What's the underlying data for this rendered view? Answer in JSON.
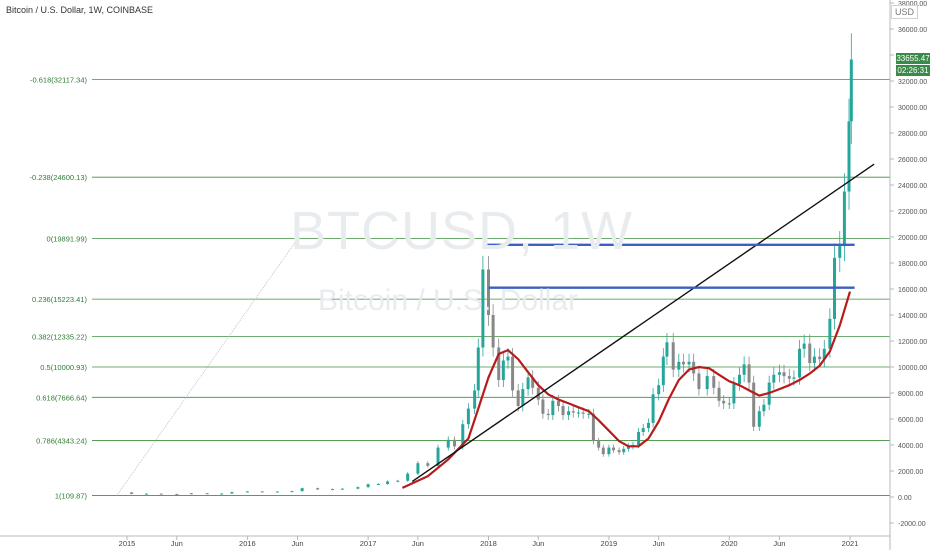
{
  "chart_title": "Bitcoin / U.S. Dollar, 1W, COINBASE",
  "watermark": {
    "symbol": "BTCUSD, 1W",
    "name": "Bitcoin / U.S. Dollar"
  },
  "currency_label": "USD",
  "last_price": "33655.47",
  "countdown": "02:26:31",
  "colors": {
    "fib_line": "#3f8f3f",
    "fib_label": "#2e7d32",
    "up_candle": "#26a69a",
    "down_candle": "#888888",
    "moving_average": "#b71c1c",
    "resistance": "#3b5fc2",
    "trendline": "#111111",
    "price_badge": "#3a8a4a"
  },
  "chart_data": {
    "type": "candlestick",
    "y_axis": {
      "side": "right",
      "min": -2000,
      "max": 38000,
      "step": 2000,
      "ticks": [
        "-2000.00",
        "0.00",
        "2000.00",
        "4000.00",
        "6000.00",
        "8000.00",
        "10000.00",
        "12000.00",
        "14000.00",
        "16000.00",
        "18000.00",
        "20000.00",
        "22000.00",
        "24000.00",
        "26000.00",
        "28000.00",
        "30000.00",
        "32000.00",
        "34000.00",
        "36000.00",
        "38000.00"
      ]
    },
    "x_axis": {
      "ticks": [
        {
          "label": "2015",
          "date": "2015-01-01"
        },
        {
          "label": "Jun",
          "date": "2015-06-01"
        },
        {
          "label": "2016",
          "date": "2016-01-01"
        },
        {
          "label": "Jun",
          "date": "2016-06-01"
        },
        {
          "label": "2017",
          "date": "2017-01-01"
        },
        {
          "label": "Jun",
          "date": "2017-06-01"
        },
        {
          "label": "2018",
          "date": "2018-01-01"
        },
        {
          "label": "Jun",
          "date": "2018-06-01"
        },
        {
          "label": "2019",
          "date": "2019-01-01"
        },
        {
          "label": "Jun",
          "date": "2019-06-01"
        },
        {
          "label": "2020",
          "date": "2020-01-01"
        },
        {
          "label": "Jun",
          "date": "2020-06-01"
        },
        {
          "label": "2021",
          "date": "2021-01-01"
        }
      ]
    },
    "fib_levels": [
      {
        "label": "1(109.87)",
        "value": 109.87
      },
      {
        "label": "0.786(4343.24)",
        "value": 4343.24
      },
      {
        "label": "0.618(7666.64)",
        "value": 7666.64
      },
      {
        "label": "0.5(10000.93)",
        "value": 10000.93
      },
      {
        "label": "0.382(12335.22)",
        "value": 12335.22
      },
      {
        "label": "0.236(15223.41)",
        "value": 15223.41
      },
      {
        "label": "0(19891.99)",
        "value": 19891.99
      },
      {
        "label": "-0.238(24600.13)",
        "value": 24600.13
      },
      {
        "label": "-0.618(32117.34)",
        "value": 32117.34
      }
    ],
    "resistance_lines": [
      {
        "value": 19400,
        "from": "2017-12-15",
        "to": "2021-01-15"
      },
      {
        "value": 16100,
        "from": "2018-01-01",
        "to": "2021-01-15"
      }
    ],
    "trendline": {
      "from": {
        "date": "2017-05-15",
        "value": 1200
      },
      "to": {
        "date": "2021-03-15",
        "value": 25600
      }
    },
    "fib_anchor_line": {
      "from": {
        "date": "2014-12-01",
        "value": 109.87
      },
      "to": {
        "date": "2017-12-15",
        "value": 19891.99
      }
    },
    "series": [
      {
        "name": "Price",
        "points": [
          [
            "2014-12-01",
            350
          ],
          [
            "2015-01-15",
            230
          ],
          [
            "2015-03-01",
            260
          ],
          [
            "2015-04-15",
            235
          ],
          [
            "2015-06-01",
            230
          ],
          [
            "2015-07-15",
            290
          ],
          [
            "2015-09-01",
            235
          ],
          [
            "2015-10-15",
            270
          ],
          [
            "2015-11-15",
            380
          ],
          [
            "2016-01-01",
            430
          ],
          [
            "2016-02-15",
            410
          ],
          [
            "2016-04-01",
            420
          ],
          [
            "2016-05-15",
            450
          ],
          [
            "2016-06-15",
            680
          ],
          [
            "2016-08-01",
            580
          ],
          [
            "2016-09-15",
            610
          ],
          [
            "2016-10-15",
            640
          ],
          [
            "2016-12-01",
            760
          ],
          [
            "2017-01-01",
            980
          ],
          [
            "2017-02-01",
            1000
          ],
          [
            "2017-03-01",
            1200
          ],
          [
            "2017-04-01",
            1250
          ],
          [
            "2017-05-01",
            1800
          ],
          [
            "2017-06-01",
            2600
          ],
          [
            "2017-07-01",
            2400
          ],
          [
            "2017-08-01",
            3800
          ],
          [
            "2017-09-01",
            4400
          ],
          [
            "2017-09-20",
            3900
          ],
          [
            "2017-10-15",
            5600
          ],
          [
            "2017-11-01",
            6800
          ],
          [
            "2017-11-20",
            8200
          ],
          [
            "2017-12-01",
            11500
          ],
          [
            "2017-12-15",
            17500
          ],
          [
            "2018-01-01",
            14000
          ],
          [
            "2018-01-15",
            11500
          ],
          [
            "2018-02-01",
            9000
          ],
          [
            "2018-02-15",
            10500
          ],
          [
            "2018-03-01",
            10800
          ],
          [
            "2018-03-15",
            8200
          ],
          [
            "2018-04-01",
            7000
          ],
          [
            "2018-04-15",
            8300
          ],
          [
            "2018-05-01",
            9200
          ],
          [
            "2018-05-15",
            8400
          ],
          [
            "2018-06-01",
            7500
          ],
          [
            "2018-06-15",
            6400
          ],
          [
            "2018-07-01",
            6300
          ],
          [
            "2018-07-15",
            7400
          ],
          [
            "2018-08-01",
            7000
          ],
          [
            "2018-08-15",
            6300
          ],
          [
            "2018-09-01",
            6600
          ],
          [
            "2018-09-15",
            6500
          ],
          [
            "2018-10-01",
            6500
          ],
          [
            "2018-10-15",
            6400
          ],
          [
            "2018-11-01",
            6400
          ],
          [
            "2018-11-15",
            4300
          ],
          [
            "2018-12-01",
            3800
          ],
          [
            "2018-12-15",
            3300
          ],
          [
            "2019-01-01",
            3800
          ],
          [
            "2019-01-15",
            3600
          ],
          [
            "2019-02-01",
            3450
          ],
          [
            "2019-02-15",
            3700
          ],
          [
            "2019-03-01",
            3900
          ],
          [
            "2019-03-15",
            4000
          ],
          [
            "2019-04-01",
            5000
          ],
          [
            "2019-04-15",
            5300
          ],
          [
            "2019-05-01",
            5700
          ],
          [
            "2019-05-15",
            7900
          ],
          [
            "2019-06-01",
            8600
          ],
          [
            "2019-06-15",
            10800
          ],
          [
            "2019-06-26",
            11900
          ],
          [
            "2019-07-15",
            9800
          ],
          [
            "2019-08-01",
            10400
          ],
          [
            "2019-08-15",
            10200
          ],
          [
            "2019-09-01",
            10400
          ],
          [
            "2019-09-15",
            9500
          ],
          [
            "2019-10-01",
            8300
          ],
          [
            "2019-10-26",
            9300
          ],
          [
            "2019-11-15",
            8400
          ],
          [
            "2019-12-01",
            7400
          ],
          [
            "2019-12-15",
            7200
          ],
          [
            "2020-01-01",
            7200
          ],
          [
            "2020-01-15",
            8700
          ],
          [
            "2020-02-01",
            9400
          ],
          [
            "2020-02-15",
            10200
          ],
          [
            "2020-03-01",
            8800
          ],
          [
            "2020-03-15",
            5400
          ],
          [
            "2020-04-01",
            6600
          ],
          [
            "2020-04-15",
            7100
          ],
          [
            "2020-05-01",
            8800
          ],
          [
            "2020-05-15",
            9400
          ],
          [
            "2020-06-01",
            9600
          ],
          [
            "2020-06-15",
            9300
          ],
          [
            "2020-07-01",
            9100
          ],
          [
            "2020-07-15",
            9200
          ],
          [
            "2020-08-01",
            11400
          ],
          [
            "2020-08-15",
            11800
          ],
          [
            "2020-09-01",
            10300
          ],
          [
            "2020-09-15",
            10800
          ],
          [
            "2020-10-01",
            10600
          ],
          [
            "2020-10-15",
            11400
          ],
          [
            "2020-11-01",
            13700
          ],
          [
            "2020-11-15",
            18400
          ],
          [
            "2020-12-01",
            19300
          ],
          [
            "2020-12-15",
            23500
          ],
          [
            "2020-12-29",
            28900
          ],
          [
            "2021-01-05",
            33655
          ]
        ]
      },
      {
        "name": "Moving Average",
        "points": [
          [
            "2017-04-15",
            700
          ],
          [
            "2017-07-01",
            1600
          ],
          [
            "2017-09-01",
            2900
          ],
          [
            "2017-11-01",
            4500
          ],
          [
            "2017-12-01",
            6800
          ],
          [
            "2018-01-01",
            9200
          ],
          [
            "2018-02-01",
            11000
          ],
          [
            "2018-03-01",
            11300
          ],
          [
            "2018-04-01",
            10600
          ],
          [
            "2018-05-01",
            9600
          ],
          [
            "2018-06-01",
            8600
          ],
          [
            "2018-07-01",
            7900
          ],
          [
            "2018-08-01",
            7500
          ],
          [
            "2018-09-01",
            7200
          ],
          [
            "2018-10-01",
            6900
          ],
          [
            "2018-11-01",
            6600
          ],
          [
            "2018-12-01",
            5900
          ],
          [
            "2019-01-01",
            5100
          ],
          [
            "2019-02-01",
            4300
          ],
          [
            "2019-03-01",
            3900
          ],
          [
            "2019-04-01",
            3900
          ],
          [
            "2019-05-01",
            4500
          ],
          [
            "2019-06-01",
            5800
          ],
          [
            "2019-07-01",
            7500
          ],
          [
            "2019-08-01",
            9000
          ],
          [
            "2019-09-01",
            9800
          ],
          [
            "2019-10-01",
            10000
          ],
          [
            "2019-11-01",
            9900
          ],
          [
            "2019-12-01",
            9400
          ],
          [
            "2020-01-01",
            8900
          ],
          [
            "2020-02-01",
            8600
          ],
          [
            "2020-03-01",
            8200
          ],
          [
            "2020-04-01",
            7800
          ],
          [
            "2020-05-01",
            8000
          ],
          [
            "2020-06-01",
            8300
          ],
          [
            "2020-07-01",
            8600
          ],
          [
            "2020-08-01",
            9000
          ],
          [
            "2020-09-01",
            9500
          ],
          [
            "2020-10-01",
            10100
          ],
          [
            "2020-11-01",
            11200
          ],
          [
            "2020-12-01",
            13200
          ],
          [
            "2021-01-01",
            15800
          ]
        ]
      }
    ]
  }
}
